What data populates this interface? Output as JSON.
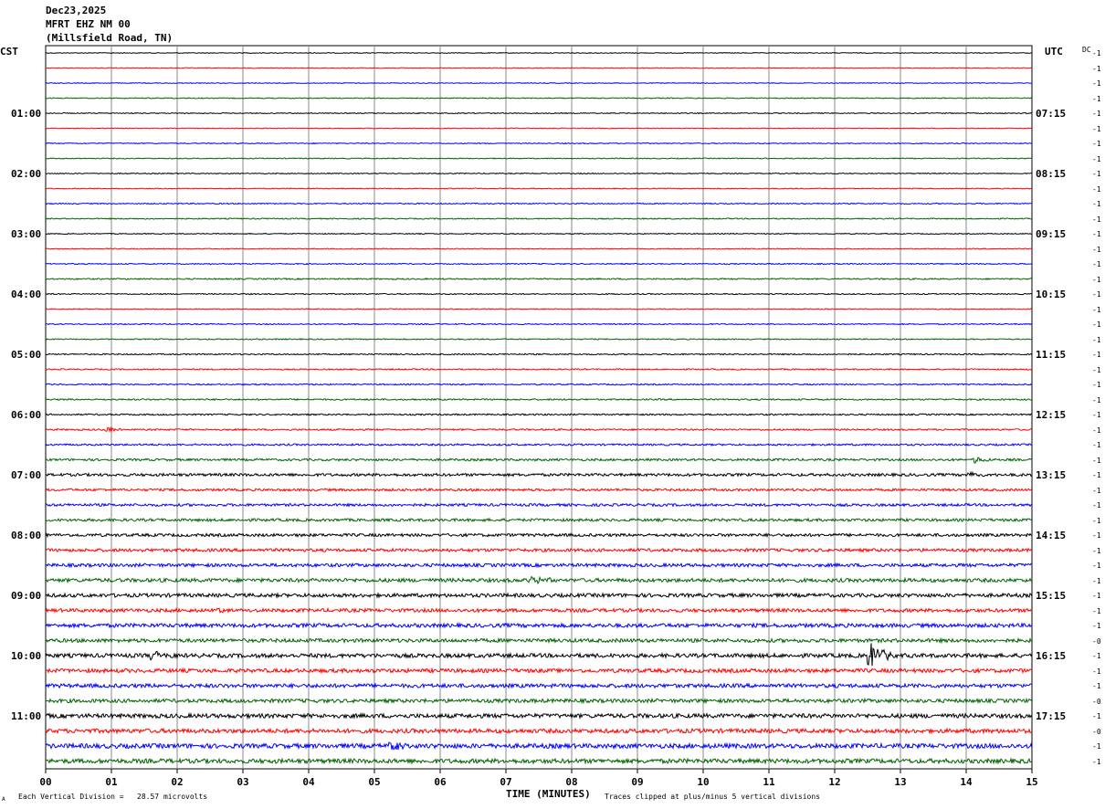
{
  "header": {
    "date": "Dec23,2025",
    "station": "MFRT EHZ NM 00",
    "location": "(Millsfield Road, TN)"
  },
  "left_tz": "CST",
  "right_tz": "UTC",
  "dc_label": "DC",
  "footer": {
    "scale_note": "Each Vertical Division =   28.57 microvolts",
    "xlabel": "TIME (MINUTES)",
    "clip_note": "Traces clipped at plus/minus 5 vertical divisions",
    "corner_mark": "A"
  },
  "chart_data": {
    "type": "line",
    "subtype": "helicorder",
    "xlabel": "TIME (MINUTES)",
    "xlim": [
      0,
      15
    ],
    "x_ticks": [
      "00",
      "01",
      "02",
      "03",
      "04",
      "05",
      "06",
      "07",
      "08",
      "09",
      "10",
      "11",
      "12",
      "13",
      "14",
      "15"
    ],
    "row_minutes": 15,
    "trace_count": 48,
    "trace_colors": [
      "#000000",
      "#ff0000",
      "#0000ff",
      "#006400"
    ],
    "left_hour_labels": [
      "01:00",
      "02:00",
      "03:00",
      "04:00",
      "05:00",
      "06:00",
      "07:00",
      "08:00",
      "09:00",
      "10:00",
      "11:00"
    ],
    "right_hour_labels": [
      "07:15",
      "08:15",
      "09:15",
      "10:15",
      "11:15",
      "12:15",
      "13:15",
      "14:15",
      "15:15",
      "16:15",
      "17:15"
    ],
    "hour_label_rows": [
      4,
      8,
      12,
      16,
      20,
      24,
      28,
      32,
      36,
      40,
      44
    ],
    "dc_offsets": [
      "-1",
      "-1",
      "-1",
      "-1",
      "-1",
      "-1",
      "-1",
      "-1",
      "-1",
      "-1",
      "-1",
      "-1",
      "-1",
      "-1",
      "-1",
      "-1",
      "-1",
      "-1",
      "-1",
      "-1",
      "-1",
      "-1",
      "-1",
      "-1",
      "-1",
      "-1",
      "-1",
      "-1",
      "-1",
      "-1",
      "-1",
      "-1",
      "-1",
      "-1",
      "-1",
      "-1",
      "-1",
      "-1",
      "-1",
      "-0",
      "-1",
      "-1",
      "-1",
      "-0",
      "-1",
      "-0",
      "-1",
      "-1"
    ],
    "noise_amplitude": [
      0.4,
      0.4,
      0.4,
      0.5,
      0.5,
      0.4,
      0.5,
      0.5,
      0.5,
      0.5,
      0.6,
      0.6,
      0.5,
      0.5,
      0.6,
      0.7,
      0.6,
      0.5,
      0.6,
      0.6,
      0.7,
      0.7,
      0.7,
      0.8,
      0.8,
      0.9,
      1.0,
      1.2,
      1.5,
      1.3,
      1.4,
      1.5,
      1.6,
      1.7,
      1.8,
      2.0,
      2.0,
      1.9,
      2.1,
      2.0,
      2.2,
      2.1,
      2.1,
      2.0,
      2.3,
      2.3,
      2.5,
      2.4
    ],
    "events": [
      {
        "trace": 25,
        "minute": 0.95,
        "amplitude": 3
      },
      {
        "trace": 27,
        "minute": 14.15,
        "amplitude": 4
      },
      {
        "trace": 28,
        "minute": 14.05,
        "amplitude": 4
      },
      {
        "trace": 35,
        "minute": 7.4,
        "amplitude": 5
      },
      {
        "trace": 37,
        "minute": 2.6,
        "amplitude": 4
      },
      {
        "trace": 40,
        "minute": 1.65,
        "amplitude": 6
      },
      {
        "trace": 40,
        "minute": 12.55,
        "amplitude": 15
      },
      {
        "trace": 46,
        "minute": 5.25,
        "amplitude": 4
      }
    ]
  }
}
